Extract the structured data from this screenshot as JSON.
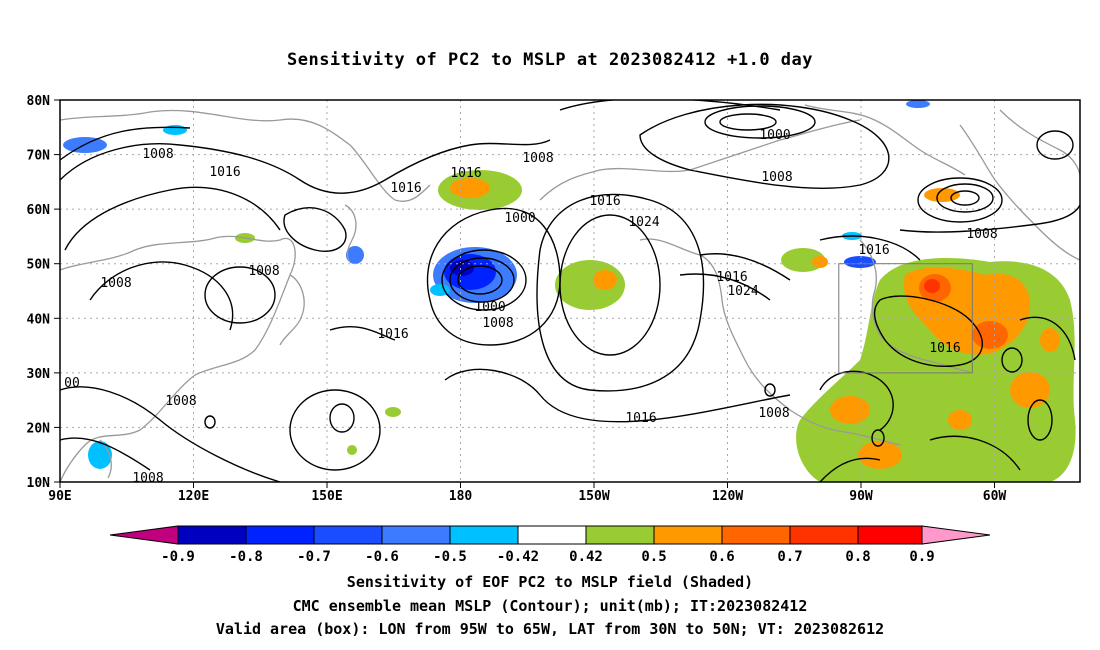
{
  "title": "Sensitivity of PC2 to MSLP at 2023082412 +1.0 day",
  "map": {
    "lat_ticks": [
      "80N",
      "70N",
      "60N",
      "50N",
      "40N",
      "30N",
      "20N",
      "10N"
    ],
    "lon_ticks": [
      "90E",
      "120E",
      "150E",
      "180",
      "150W",
      "120W",
      "90W",
      "60W"
    ],
    "contour_labels": [
      "1008",
      "1016",
      "1016",
      "1008",
      "1016",
      "1000",
      "1016",
      "1024",
      "1000",
      "1008",
      "1008",
      "1008",
      "1016",
      "1024",
      "1016",
      "1016",
      "1008",
      "1000",
      "1008",
      "1016",
      "1008",
      "1008",
      "1008",
      "1016",
      "1016",
      "00"
    ],
    "valid_area": {
      "lon_from": "95W",
      "lon_to": "65W",
      "lat_from": "30N",
      "lat_to": "50N"
    }
  },
  "colorbar": {
    "labels": [
      "-0.9",
      "-0.8",
      "-0.7",
      "-0.6",
      "-0.5",
      "-0.42",
      "0.42",
      "0.5",
      "0.6",
      "0.7",
      "0.8",
      "0.9"
    ],
    "colors": [
      "#c0007f",
      "#0000c0",
      "#0022ff",
      "#1a4dff",
      "#3d7cff",
      "#00c0ff",
      "#ffffff",
      "#99cc33",
      "#ff9900",
      "#ff6600",
      "#ff3300",
      "#ff0000",
      "#ff99cc"
    ]
  },
  "captions": {
    "line1": "Sensitivity of EOF PC2 to MSLP field (Shaded)",
    "line2": "CMC ensemble mean MSLP (Contour); unit(mb); IT:2023082412",
    "line3": "Valid area (box): LON from 95W to 65W, LAT from 30N to 50N; VT: 2023082612"
  }
}
